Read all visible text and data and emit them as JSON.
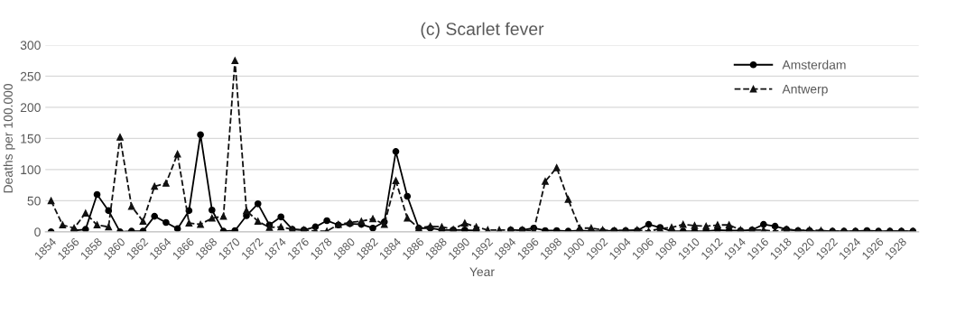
{
  "chart_data": {
    "type": "line",
    "title": "(c) Scarlet fever",
    "xlabel": "Year",
    "ylabel": "Deaths per 100.000",
    "categories": [
      "1854",
      null,
      "1856",
      null,
      "1858",
      null,
      "1860",
      null,
      "1862",
      null,
      "1864",
      null,
      "1866",
      null,
      "1868",
      null,
      "1870",
      null,
      "1872",
      null,
      "1874",
      null,
      "1876",
      null,
      "1878",
      null,
      "1880",
      null,
      "1882",
      null,
      "1884",
      null,
      "1886",
      null,
      "1888",
      null,
      "1890",
      null,
      "1892",
      null,
      "1894",
      null,
      "1896",
      null,
      "1898",
      null,
      "1900",
      null,
      "1902",
      null,
      "1904",
      null,
      "1906",
      null,
      "1908",
      null,
      "1910",
      null,
      "1912",
      null,
      "1914",
      null,
      "1916",
      null,
      "1918",
      null,
      "1920",
      null,
      "1922",
      null,
      "1924",
      null,
      "1926",
      null,
      "1928",
      null
    ],
    "series": [
      {
        "name": "Amsterdam",
        "color": "#000000",
        "marker": "circle",
        "line_style": "solid",
        "values": [
          0,
          null,
          2,
          4,
          60,
          34,
          0,
          1,
          1,
          25,
          15,
          5,
          34,
          156,
          35,
          1,
          2,
          26,
          45,
          11,
          24,
          4,
          3,
          8,
          18,
          11,
          13,
          12,
          6,
          16,
          129,
          57,
          6,
          6,
          3,
          3,
          3,
          2,
          null,
          null,
          3,
          3,
          6,
          2,
          2,
          1,
          2,
          1,
          1,
          2,
          2,
          2,
          12,
          7,
          1,
          1,
          1,
          1,
          3,
          2,
          2,
          3,
          12,
          9,
          4,
          2,
          2,
          0,
          1,
          1,
          1,
          2,
          1,
          1,
          1,
          1
        ]
      },
      {
        "name": "Antwerp",
        "color": "#111111",
        "marker": "triangle",
        "line_style": "dashed",
        "values": [
          50,
          11,
          6,
          30,
          11,
          8,
          152,
          41,
          17,
          73,
          78,
          125,
          14,
          12,
          22,
          25,
          275,
          34,
          17,
          7,
          8,
          4,
          3,
          1,
          1,
          12,
          15,
          17,
          21,
          12,
          82,
          22,
          6,
          9,
          8,
          4,
          14,
          8,
          3,
          3,
          3,
          3,
          2,
          81,
          103,
          52,
          6,
          6,
          3,
          2,
          2,
          3,
          1,
          5,
          7,
          12,
          10,
          9,
          11,
          11,
          3,
          3,
          3,
          1,
          4,
          2,
          3,
          2,
          1,
          1,
          1,
          1,
          0,
          1,
          1,
          1
        ]
      }
    ],
    "ylim": [
      0,
      300
    ],
    "yticks": [
      0,
      50,
      100,
      150,
      200,
      250,
      300
    ],
    "grid": "y",
    "legend": "top right"
  }
}
